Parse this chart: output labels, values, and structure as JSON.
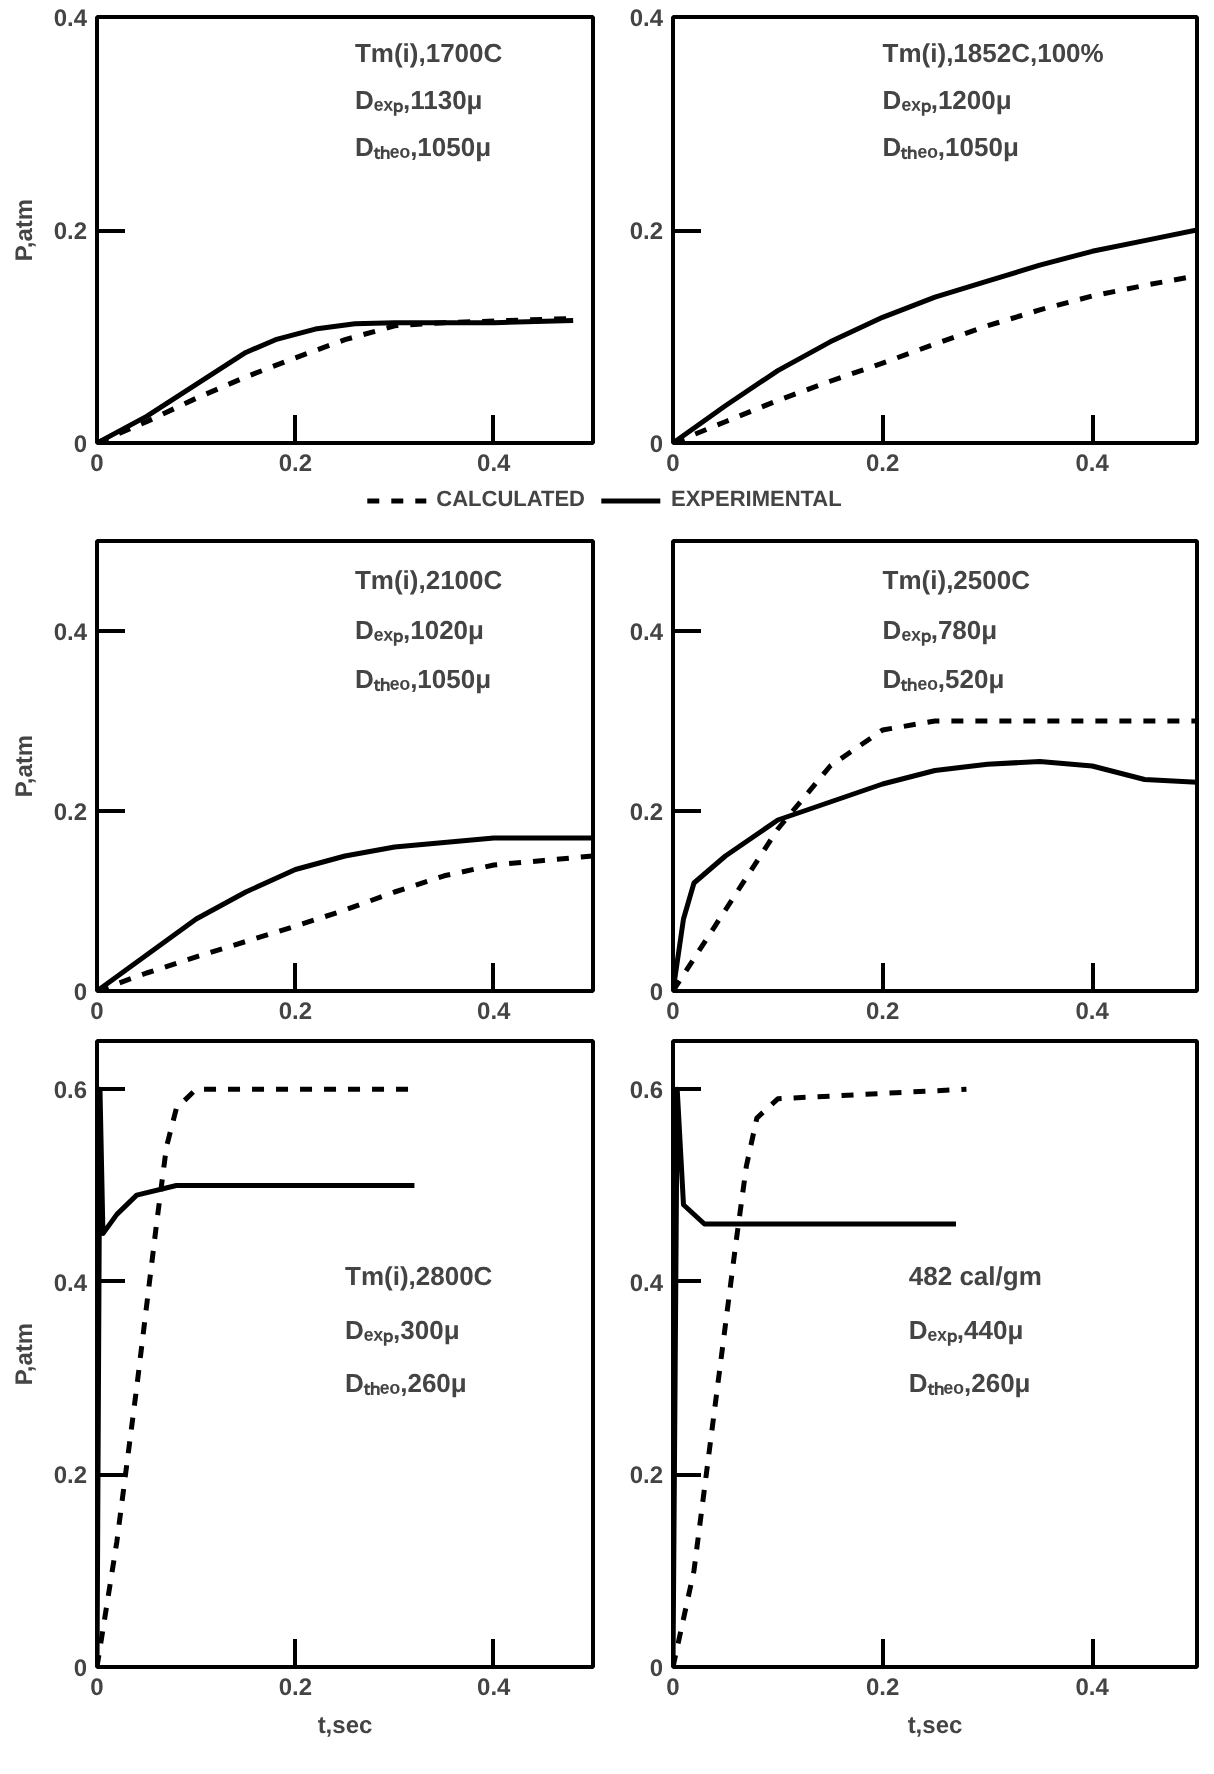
{
  "chart_data": [
    {
      "type": "line",
      "ylabel": "P,atm",
      "xlim": [
        0,
        0.5
      ],
      "ylim": [
        0,
        0.4
      ],
      "xticks": [
        0,
        0.2,
        0.4
      ],
      "yticks": [
        0,
        0.2,
        0.4
      ],
      "grid": false,
      "legend": "bottom",
      "annotations": [
        "Tm(i),1700C",
        "Dₑₓₚ,1130μ",
        "Dₜₕₑₒ,1050μ"
      ],
      "series": [
        {
          "name": "CALCULATED",
          "color": "#000000",
          "line_style": "dashed",
          "x": [
            0,
            0.05,
            0.1,
            0.15,
            0.2,
            0.25,
            0.3,
            0.35,
            0.48
          ],
          "values": [
            0,
            0.02,
            0.042,
            0.062,
            0.08,
            0.097,
            0.11,
            0.113,
            0.117
          ]
        },
        {
          "name": "EXPERIMENTAL",
          "color": "#000000",
          "line_style": "solid",
          "x": [
            0,
            0.05,
            0.1,
            0.15,
            0.18,
            0.22,
            0.26,
            0.3,
            0.4,
            0.48
          ],
          "values": [
            0,
            0.025,
            0.055,
            0.085,
            0.097,
            0.107,
            0.112,
            0.113,
            0.113,
            0.115
          ]
        }
      ]
    },
    {
      "type": "line",
      "xlim": [
        0,
        0.5
      ],
      "ylim": [
        0,
        0.4
      ],
      "xticks": [
        0,
        0.2,
        0.4
      ],
      "yticks": [
        0,
        0.2,
        0.4
      ],
      "grid": false,
      "annotations": [
        "Tm(i),1852C,100%",
        "Dₑₓₚ,1200μ",
        "Dₜₕₑₒ,1050μ"
      ],
      "series": [
        {
          "color": "#000000",
          "line_style": "dashed",
          "x": [
            0,
            0.05,
            0.1,
            0.15,
            0.2,
            0.25,
            0.3,
            0.35,
            0.4,
            0.45,
            0.5
          ],
          "values": [
            0,
            0.02,
            0.04,
            0.058,
            0.075,
            0.093,
            0.11,
            0.125,
            0.138,
            0.148,
            0.157
          ]
        },
        {
          "color": "#000000",
          "line_style": "solid",
          "x": [
            0,
            0.05,
            0.1,
            0.15,
            0.2,
            0.25,
            0.3,
            0.35,
            0.4,
            0.45,
            0.5
          ],
          "values": [
            0,
            0.035,
            0.068,
            0.095,
            0.118,
            0.137,
            0.152,
            0.167,
            0.18,
            0.19,
            0.2
          ]
        }
      ]
    },
    {
      "type": "line",
      "ylabel": "P,atm",
      "xlim": [
        0,
        0.5
      ],
      "ylim": [
        0,
        0.5
      ],
      "xticks": [
        0,
        0.2,
        0.4
      ],
      "yticks": [
        0,
        0.2,
        0.4
      ],
      "grid": false,
      "annotations": [
        "Tm(i),2100C",
        "Dₑₓₚ,1020μ",
        "Dₜₕₑₒ,1050μ"
      ],
      "series": [
        {
          "color": "#000000",
          "line_style": "dashed",
          "x": [
            0,
            0.05,
            0.1,
            0.15,
            0.2,
            0.25,
            0.3,
            0.35,
            0.4,
            0.45,
            0.5
          ],
          "values": [
            0,
            0.02,
            0.038,
            0.055,
            0.072,
            0.09,
            0.11,
            0.128,
            0.14,
            0.145,
            0.15
          ]
        },
        {
          "color": "#000000",
          "line_style": "solid",
          "x": [
            0,
            0.05,
            0.1,
            0.15,
            0.2,
            0.25,
            0.3,
            0.35,
            0.4,
            0.5
          ],
          "values": [
            0,
            0.04,
            0.08,
            0.11,
            0.135,
            0.15,
            0.16,
            0.165,
            0.17,
            0.17
          ]
        }
      ]
    },
    {
      "type": "line",
      "xlim": [
        0,
        0.5
      ],
      "ylim": [
        0,
        0.5
      ],
      "xticks": [
        0,
        0.2,
        0.4
      ],
      "yticks": [
        0,
        0.2,
        0.4
      ],
      "grid": false,
      "annotations": [
        "Tm(i),2500C",
        "Dₑₓₚ,780μ",
        "Dₜₕₑₒ,520μ"
      ],
      "series": [
        {
          "color": "#000000",
          "line_style": "dashed",
          "x": [
            0,
            0.05,
            0.1,
            0.15,
            0.2,
            0.25,
            0.5
          ],
          "values": [
            0,
            0.09,
            0.18,
            0.25,
            0.29,
            0.3,
            0.3
          ]
        },
        {
          "color": "#000000",
          "line_style": "solid",
          "x": [
            0,
            0.01,
            0.02,
            0.05,
            0.1,
            0.15,
            0.2,
            0.25,
            0.3,
            0.35,
            0.4,
            0.45,
            0.5
          ],
          "values": [
            0,
            0.08,
            0.12,
            0.15,
            0.19,
            0.21,
            0.23,
            0.245,
            0.252,
            0.255,
            0.25,
            0.235,
            0.232
          ]
        }
      ]
    },
    {
      "type": "line",
      "xlabel": "t,sec",
      "ylabel": "P,atm",
      "xlim": [
        0,
        0.5
      ],
      "ylim": [
        0,
        0.65
      ],
      "xticks": [
        0,
        0.2,
        0.4
      ],
      "yticks": [
        0,
        0.2,
        0.4,
        0.6
      ],
      "grid": false,
      "annotations": [
        "Tm(i),2800C",
        "Dₑₓₚ,300μ",
        "Dₜₕₑₒ,260μ"
      ],
      "series": [
        {
          "color": "#000000",
          "line_style": "dashed",
          "x": [
            0,
            0.02,
            0.04,
            0.06,
            0.07,
            0.08,
            0.1,
            0.32
          ],
          "values": [
            0,
            0.13,
            0.29,
            0.46,
            0.54,
            0.58,
            0.6,
            0.6
          ]
        },
        {
          "color": "#000000",
          "line_style": "solid",
          "x": [
            0,
            0.003,
            0.006,
            0.02,
            0.04,
            0.08,
            0.15,
            0.32
          ],
          "values": [
            0,
            0.6,
            0.45,
            0.47,
            0.49,
            0.5,
            0.5,
            0.5
          ]
        }
      ]
    },
    {
      "type": "line",
      "xlabel": "t,sec",
      "xlim": [
        0,
        0.5
      ],
      "ylim": [
        0,
        0.65
      ],
      "xticks": [
        0,
        0.2,
        0.4
      ],
      "yticks": [
        0,
        0.2,
        0.4,
        0.6
      ],
      "grid": false,
      "annotations": [
        "482 cal/gm",
        "Dₑₓₚ,440μ",
        "Dₜₕₑₒ,260μ"
      ],
      "series": [
        {
          "color": "#000000",
          "line_style": "dashed",
          "x": [
            0,
            0.02,
            0.04,
            0.06,
            0.07,
            0.08,
            0.1,
            0.28
          ],
          "values": [
            0,
            0.1,
            0.27,
            0.44,
            0.52,
            0.57,
            0.59,
            0.6
          ]
        },
        {
          "color": "#000000",
          "line_style": "solid",
          "x": [
            0,
            0.004,
            0.01,
            0.03,
            0.1,
            0.27
          ],
          "values": [
            0,
            0.6,
            0.48,
            0.46,
            0.46,
            0.46
          ]
        }
      ]
    }
  ]
}
